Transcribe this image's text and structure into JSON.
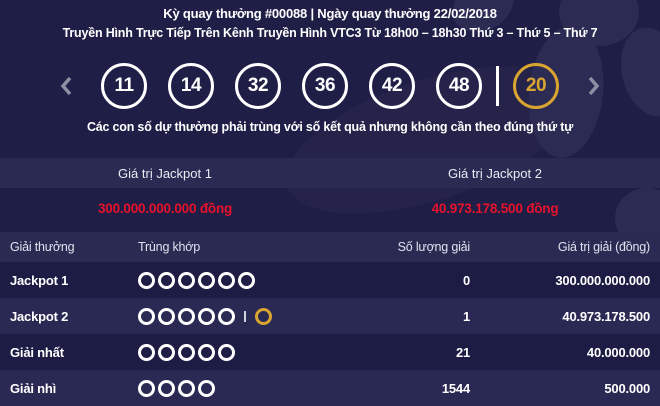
{
  "header": {
    "draw_info": "Kỳ quay thưởng #00088 | Ngày quay thưởng 22/02/2018",
    "broadcast_info": "Truyền Hình Trực Tiếp Trên Kênh Truyền Hình VTC3 Từ 18h00 – 18h30 Thứ 3 – Thứ 5 – Thứ 7"
  },
  "results": {
    "main_numbers": [
      "11",
      "14",
      "32",
      "36",
      "42",
      "48"
    ],
    "bonus_number": "20",
    "note": "Các con số dự thưởng phải trùng với số kết quả nhưng không cần theo đúng thứ tự"
  },
  "jackpots": [
    {
      "label": "Giá trị Jackpot 1",
      "value": "300.000.000.000 đồng"
    },
    {
      "label": "Giá trị Jackpot 2",
      "value": "40.973.178.500 đồng"
    }
  ],
  "prize_table": {
    "columns": [
      "Giải thưởng",
      "Trùng khớp",
      "Số lượng giải",
      "Giá trị giải (đồng)"
    ],
    "rows": [
      {
        "label": "Jackpot 1",
        "match_main": 6,
        "match_bonus": false,
        "count": "0",
        "value": "300.000.000.000"
      },
      {
        "label": "Jackpot 2",
        "match_main": 5,
        "match_bonus": true,
        "count": "1",
        "value": "40.973.178.500"
      },
      {
        "label": "Giải nhất",
        "match_main": 5,
        "match_bonus": false,
        "count": "21",
        "value": "40.000.000"
      },
      {
        "label": "Giải nhì",
        "match_main": 4,
        "match_bonus": false,
        "count": "1544",
        "value": "500.000"
      }
    ]
  },
  "colors": {
    "background": "#1f1e47",
    "panel": "#2b2a53",
    "row_dark": "#1d1c44",
    "row_light": "#2a2953",
    "accent_gold": "#d9a430",
    "value_red": "#e8122b",
    "chevron_gray": "#8b90a3",
    "white": "#ffffff"
  }
}
